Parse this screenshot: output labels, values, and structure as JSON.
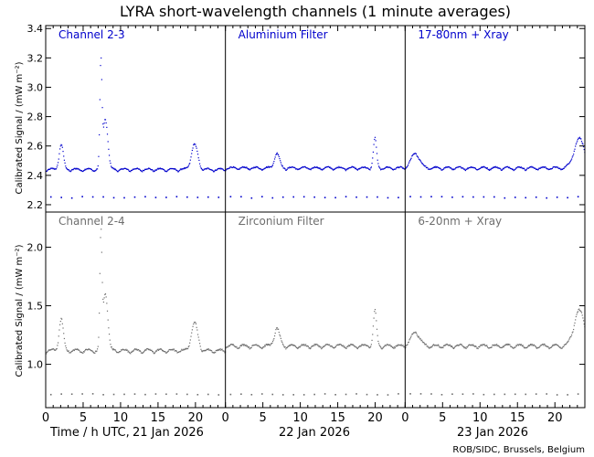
{
  "title": "LYRA short-wavelength channels (1 minute averages)",
  "credit": "ROB/SIDC, Brussels, Belgium",
  "y_axis_label": "Calibrated Signal / (mW m⁻²)",
  "x_axis_caption": "Time / h UTC,",
  "day_labels": [
    "21 Jan 2026",
    "22 Jan 2026",
    "23 Jan 2026"
  ],
  "x_tick_labels": [
    "0",
    "5",
    "10",
    "15",
    "20"
  ],
  "colors": {
    "top_series": "#0000cc",
    "bottom_series": "#6e6e6e",
    "frame": "#000000"
  },
  "chart_data": [
    {
      "type": "scatter",
      "row": "top",
      "ylim": [
        2.15,
        3.42
      ],
      "yticks": [
        2.2,
        2.4,
        2.6,
        2.8,
        3.0,
        3.2,
        3.4
      ],
      "ytick_labels": [
        "2.2",
        "2.4",
        "2.6",
        "2.8",
        "3.0",
        "3.2",
        "3.4"
      ],
      "xlim_hours": [
        0,
        72
      ],
      "panels": [
        {
          "name": "Channel 2-3",
          "day": 0,
          "baseline": 2.43,
          "low_band": 2.255,
          "features": [
            {
              "h": 2.0,
              "a": 0.17,
              "w": 0.4
            },
            {
              "h": 7.3,
              "a": 0.7,
              "w": 0.2
            },
            {
              "h": 7.9,
              "a": 0.35,
              "w": 0.45
            },
            {
              "h": 19.8,
              "a": 0.17,
              "w": 0.6
            }
          ]
        },
        {
          "name": "Aluminium Filter",
          "day": 1,
          "baseline": 2.44,
          "low_band": 2.255,
          "features": [
            {
              "h": 6.8,
              "a": 0.1,
              "w": 0.5
            },
            {
              "h": 19.9,
              "a": 0.2,
              "w": 0.3
            }
          ]
        },
        {
          "name": "17-80nm + Xray",
          "day": 2,
          "baseline": 2.44,
          "low_band": 2.255,
          "features": [
            {
              "h": 1.3,
              "a": 0.1,
              "w": 0.8
            },
            {
              "h": 23.2,
              "a": 0.2,
              "w": 1.0
            }
          ]
        }
      ]
    },
    {
      "type": "scatter",
      "row": "bottom",
      "ylim": [
        0.63,
        2.3
      ],
      "yticks": [
        1.0,
        1.5,
        2.0
      ],
      "ytick_labels": [
        "1.0",
        "1.5",
        "2.0"
      ],
      "xlim_hours": [
        0,
        72
      ],
      "panels": [
        {
          "name": "Channel 2-4",
          "day": 0,
          "baseline": 1.1,
          "low_band": 0.75,
          "features": [
            {
              "h": 2.0,
              "a": 0.27,
              "w": 0.4
            },
            {
              "h": 7.3,
              "a": 0.95,
              "w": 0.2
            },
            {
              "h": 7.9,
              "a": 0.5,
              "w": 0.45
            },
            {
              "h": 19.8,
              "a": 0.24,
              "w": 0.6
            }
          ]
        },
        {
          "name": "Zirconium Filter",
          "day": 1,
          "baseline": 1.14,
          "low_band": 0.75,
          "features": [
            {
              "h": 6.8,
              "a": 0.15,
              "w": 0.5
            },
            {
              "h": 19.9,
              "a": 0.3,
              "w": 0.3
            }
          ]
        },
        {
          "name": "6-20nm + Xray",
          "day": 2,
          "baseline": 1.14,
          "low_band": 0.75,
          "features": [
            {
              "h": 1.3,
              "a": 0.12,
              "w": 0.8
            },
            {
              "h": 23.2,
              "a": 0.3,
              "w": 1.0
            }
          ]
        }
      ]
    }
  ]
}
